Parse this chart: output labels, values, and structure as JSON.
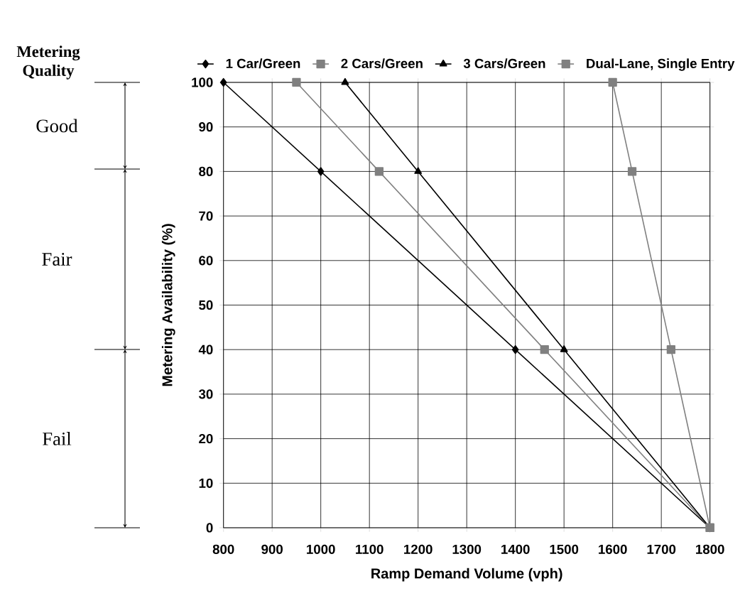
{
  "chart_data": {
    "type": "line",
    "xlabel": "Ramp Demand Volume (vph)",
    "ylabel": "Metering Availability (%)",
    "xlim": [
      800,
      1800
    ],
    "ylim": [
      0,
      100
    ],
    "xticks": [
      800,
      900,
      1000,
      1100,
      1200,
      1300,
      1400,
      1500,
      1600,
      1700,
      1800
    ],
    "yticks": [
      0,
      10,
      20,
      30,
      40,
      50,
      60,
      70,
      80,
      90,
      100
    ],
    "grid": true,
    "legend": "top",
    "line_style": "solid",
    "series": [
      {
        "name": "1 Car/Green",
        "color": "#000000",
        "marker": "diamond",
        "x": [
          800,
          1000,
          1400,
          1800
        ],
        "values": [
          100,
          80,
          40,
          0
        ]
      },
      {
        "name": "2 Cars/Green",
        "color": "#808080",
        "marker": "square",
        "x": [
          950,
          1120,
          1460,
          1800
        ],
        "values": [
          100,
          80,
          40,
          0
        ]
      },
      {
        "name": "3 Cars/Green",
        "color": "#000000",
        "marker": "triangle",
        "x": [
          1050,
          1200,
          1500,
          1800
        ],
        "values": [
          100,
          80,
          40,
          0
        ]
      },
      {
        "name": "Dual-Lane, Single Entry",
        "color": "#808080",
        "marker": "square",
        "x": [
          1600,
          1640,
          1720,
          1800
        ],
        "values": [
          100,
          80,
          40,
          0
        ]
      }
    ],
    "annotations": [
      "Metering Quality",
      "Good",
      "Fair",
      "Fail"
    ]
  }
}
